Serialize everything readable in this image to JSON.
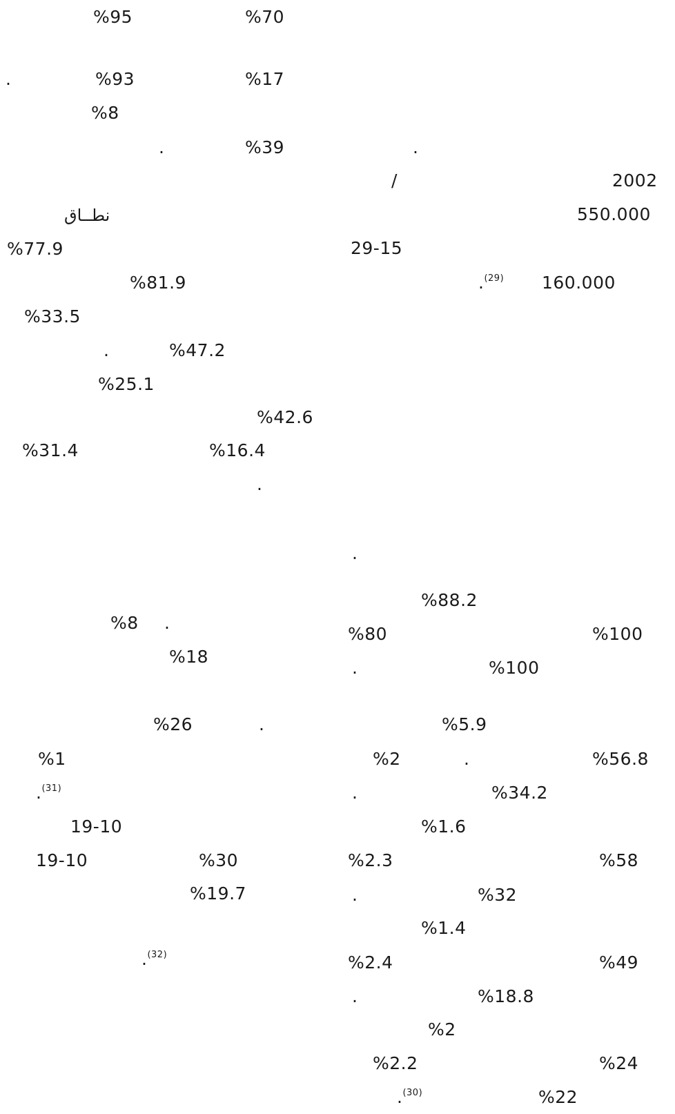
{
  "left_column": {
    "l1_a": "%95",
    "l1_b": "%70",
    "l2_dot": ".",
    "l2_a": "%93",
    "l2_b": "%17",
    "l3_a": "%8",
    "l4_dot": ".",
    "l4_a": "%39",
    "l5_word": "نطــاق",
    "l6_a": "%77.9",
    "l7_a": "%81.9",
    "l8_a": "%33.5",
    "l9_dot": ".",
    "l9_a": "%47.2",
    "l10_a": "%25.1",
    "l11_a": "%42.6",
    "l12_a": "%31.4",
    "l12_b": "%16.4",
    "l13_dot": ".",
    "l14_a": "%8",
    "l14_dot": ".",
    "l15_a": "%18",
    "l16_a": "%26",
    "l16_dot": ".",
    "l17_a": "%1",
    "l18_dot": ".",
    "l18_ref": "(31)",
    "l19_a": "19-10",
    "l20_a": "19-10",
    "l20_b": "%30",
    "l21_a": "%19.7",
    "l22_dot": ".",
    "l22_ref": "(32)"
  },
  "right_column": {
    "r1_dot": ".",
    "r2_slash": "/",
    "r2_year": "2002",
    "r3_a": "550.000",
    "r4_a": "29-15",
    "r5_dot": ".",
    "r5_ref": "(29)",
    "r5_a": "160.000",
    "r6_dot": ".",
    "r7_a": "%88.2",
    "r8_a": "%80",
    "r8_b": "%100",
    "r9_dot": ".",
    "r9_a": "%100",
    "r10_a": "%5.9",
    "r11_a": "%2",
    "r11_dot": ".",
    "r11_b": "%56.8",
    "r12_dot": ".",
    "r12_a": "%34.2",
    "r13_a": "%1.6",
    "r14_a": "%2.3",
    "r14_b": "%58",
    "r15_dot": ".",
    "r15_a": "%32",
    "r16_a": "%1.4",
    "r17_a": "%2.4",
    "r17_b": "%49",
    "r18_dot": ".",
    "r18_a": "%18.8",
    "r19_a": "%2",
    "r20_a": "%2.2",
    "r20_b": "%24",
    "r21_dot": ".",
    "r21_ref": "(30)",
    "r21_a": "%22"
  }
}
